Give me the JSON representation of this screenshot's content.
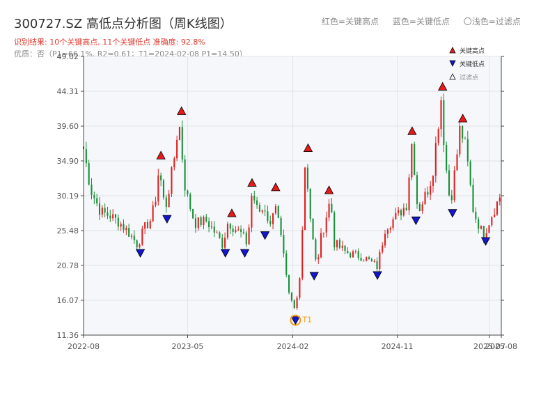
{
  "header": {
    "title": "300727.SZ 高低点分析图（周K线图）",
    "result": "识别结果: 10个关键高点, 11个关键低点  准确度: 92.8%",
    "quality": "优质：否（P1=66.1%, R2=0.61；T1=2024-02-08 P1=14.50）"
  },
  "top_legend": {
    "red": "红色=关键高点",
    "blue": "蓝色=关键低点",
    "light": "〇浅色=过滤点"
  },
  "chart_data": {
    "type": "candlestick",
    "title": "300727.SZ 高低点分析图（周K线图）",
    "xlabel": "",
    "ylabel": "",
    "ylim": [
      11.36,
      49.02
    ],
    "yticks": [
      11.36,
      16.07,
      20.78,
      25.48,
      30.19,
      34.9,
      39.6,
      44.31,
      49.02
    ],
    "ytick_labels": [
      "11.36",
      "16.07",
      "20.78",
      "25.48",
      "30.19",
      "34.90",
      "39.60",
      "44.31",
      "49.02"
    ],
    "xlim": [
      "2022-08-01",
      "2025-08-01"
    ],
    "xticks": [
      "2022-08-01",
      "2023-05-01",
      "2024-02-01",
      "2024-11-01",
      "2025-07-01",
      "2025-08-01"
    ],
    "xtick_labels": [
      "2022-08",
      "2023-05",
      "2024-02",
      "2024-11",
      "2025-07",
      "2025-08"
    ],
    "grid": true,
    "up_color": "#e02020",
    "down_color": "#1a8f3a",
    "legend": {
      "placement": "top-right",
      "entries": [
        {
          "label": "关键高点",
          "marker": "triangle-up",
          "color": "#e41a1c"
        },
        {
          "label": "关键低点",
          "marker": "triangle-down",
          "color": "#1515cc"
        },
        {
          "label": "过滤点",
          "marker": "triangle-up-hollow",
          "color": "#000000"
        }
      ]
    },
    "price_path": [
      [
        "2022-08-01",
        36.5
      ],
      [
        "2022-08-20",
        31.0
      ],
      [
        "2022-09-15",
        28.0
      ],
      [
        "2022-10-10",
        27.5
      ],
      [
        "2022-11-05",
        26.5
      ],
      [
        "2022-12-01",
        25.0
      ],
      [
        "2022-12-20",
        23.6
      ],
      [
        "2023-01-10",
        26.0
      ],
      [
        "2023-01-25",
        27.0
      ],
      [
        "2023-02-05",
        29.5
      ],
      [
        "2023-02-15",
        34.0
      ],
      [
        "2023-03-03",
        28.2
      ],
      [
        "2023-03-25",
        34.5
      ],
      [
        "2023-04-08",
        40.5
      ],
      [
        "2023-04-25",
        31.0
      ],
      [
        "2023-05-20",
        26.5
      ],
      [
        "2023-06-20",
        26.8
      ],
      [
        "2023-07-15",
        25.0
      ],
      [
        "2023-08-01",
        23.6
      ],
      [
        "2023-08-15",
        26.7
      ],
      [
        "2023-09-01",
        25.8
      ],
      [
        "2023-09-20",
        25.0
      ],
      [
        "2023-10-05",
        23.6
      ],
      [
        "2023-10-17",
        30.8
      ],
      [
        "2023-11-01",
        28.0
      ],
      [
        "2023-11-20",
        28.5
      ],
      [
        "2023-12-05",
        25.8
      ],
      [
        "2023-12-15",
        30.2
      ],
      [
        "2024-01-05",
        23.0
      ],
      [
        "2024-01-20",
        17.0
      ],
      [
        "2024-02-08",
        14.5
      ],
      [
        "2024-02-22",
        21.0
      ],
      [
        "2024-03-05",
        35.5
      ],
      [
        "2024-03-20",
        26.0
      ],
      [
        "2024-04-03",
        20.5
      ],
      [
        "2024-04-15",
        24.5
      ],
      [
        "2024-05-10",
        29.8
      ],
      [
        "2024-05-20",
        23.8
      ],
      [
        "2024-06-20",
        22.5
      ],
      [
        "2024-08-01",
        22.0
      ],
      [
        "2024-09-10",
        20.6
      ],
      [
        "2024-10-01",
        26.0
      ],
      [
        "2024-11-01",
        27.5
      ],
      [
        "2024-11-25",
        29.0
      ],
      [
        "2024-12-10",
        37.8
      ],
      [
        "2024-12-25",
        28.0
      ],
      [
        "2025-01-20",
        31.0
      ],
      [
        "2025-02-01",
        33.0
      ],
      [
        "2025-02-25",
        43.8
      ],
      [
        "2025-03-05",
        36.0
      ],
      [
        "2025-03-20",
        29.0
      ],
      [
        "2025-04-05",
        35.0
      ],
      [
        "2025-04-15",
        39.5
      ],
      [
        "2025-04-30",
        36.5
      ],
      [
        "2025-05-20",
        28.0
      ],
      [
        "2025-06-15",
        24.8
      ],
      [
        "2025-07-10",
        28.0
      ],
      [
        "2025-08-01",
        30.5
      ]
    ],
    "key_highs": [
      {
        "date": "2023-02-20",
        "price": 34.5
      },
      {
        "date": "2023-04-15",
        "price": 40.5
      },
      {
        "date": "2023-08-25",
        "price": 26.7
      },
      {
        "date": "2023-10-17",
        "price": 30.8
      },
      {
        "date": "2023-12-18",
        "price": 30.2
      },
      {
        "date": "2024-03-12",
        "price": 35.5
      },
      {
        "date": "2024-05-06",
        "price": 29.8
      },
      {
        "date": "2024-12-10",
        "price": 37.8
      },
      {
        "date": "2025-02-28",
        "price": 43.8
      },
      {
        "date": "2025-04-22",
        "price": 39.5
      }
    ],
    "key_lows": [
      {
        "date": "2022-12-28",
        "price": 23.6
      },
      {
        "date": "2023-03-08",
        "price": 28.2
      },
      {
        "date": "2023-08-08",
        "price": 23.6
      },
      {
        "date": "2023-09-28",
        "price": 23.6
      },
      {
        "date": "2023-11-20",
        "price": 26.0
      },
      {
        "date": "2024-02-08",
        "price": 14.5
      },
      {
        "date": "2024-03-28",
        "price": 20.5
      },
      {
        "date": "2024-09-10",
        "price": 20.6
      },
      {
        "date": "2024-12-20",
        "price": 28.0
      },
      {
        "date": "2025-03-26",
        "price": 29.0
      },
      {
        "date": "2025-06-21",
        "price": 25.2
      }
    ],
    "annotation": {
      "date": "2024-02-08",
      "price": 14.5,
      "label": "T1",
      "color": "#f39c12"
    }
  }
}
